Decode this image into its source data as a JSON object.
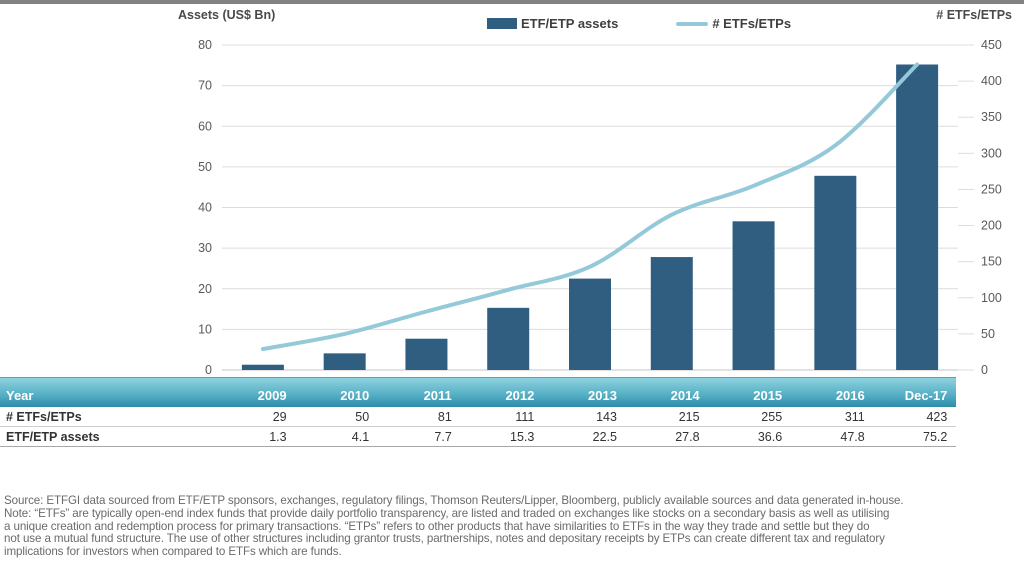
{
  "legend": [
    {
      "label": "ETF/ETP assets",
      "type": "bar"
    },
    {
      "label": "# ETFs/ETPs",
      "type": "line"
    }
  ],
  "chart_data": {
    "type": "combo",
    "categories": [
      "2009",
      "2010",
      "2011",
      "2012",
      "2013",
      "2014",
      "2015",
      "2016",
      "Dec-17"
    ],
    "series": [
      {
        "name": "ETF/ETP assets",
        "type": "bar",
        "axis": "left",
        "values": [
          1.3,
          4.1,
          7.7,
          15.3,
          22.5,
          27.8,
          36.6,
          47.8,
          75.2
        ]
      },
      {
        "name": "# ETFs/ETPs",
        "type": "line",
        "axis": "right",
        "values": [
          29,
          50,
          81,
          111,
          143,
          215,
          255,
          311,
          423
        ]
      }
    ],
    "left_axis": {
      "title": "Assets (US$ Bn)",
      "min": 0,
      "max": 80,
      "step": 10
    },
    "right_axis": {
      "title": "# ETFs/ETPs",
      "min": 0,
      "max": 450,
      "step": 50
    },
    "grid": true,
    "legend_position": "top-center"
  },
  "table": {
    "header": {
      "label": "Year",
      "values": [
        "2009",
        "2010",
        "2011",
        "2012",
        "2013",
        "2014",
        "2015",
        "2016",
        "Dec-17"
      ]
    },
    "rows": [
      {
        "label": "# ETFs/ETPs",
        "values": [
          "29",
          "50",
          "81",
          "111",
          "143",
          "215",
          "255",
          "311",
          "423"
        ]
      },
      {
        "label": "ETF/ETP assets",
        "values": [
          "1.3",
          "4.1",
          "7.7",
          "15.3",
          "22.5",
          "27.8",
          "36.6",
          "47.8",
          "75.2"
        ]
      }
    ]
  },
  "footnote": {
    "lines": [
      "Source: ETFGI data sourced from ETF/ETP sponsors, exchanges, regulatory filings, Thomson Reuters/Lipper, Bloomberg, publicly available sources and data generated in-house.",
      "Note: “ETFs” are typically open-end index funds that provide daily portfolio transparency, are listed and traded on exchanges like stocks on a secondary basis as well as utilising",
      "a unique creation and redemption process for primary transactions. “ETPs” refers to other products that have similarities to ETFs in the way they trade and settle but they do",
      "not use a mutual fund structure. The use of other structures including grantor trusts, partnerships, notes and depositary receipts by ETPs can create different tax and regulatory",
      "implications for investors when compared to ETFs which are funds."
    ]
  },
  "colors": {
    "bar": "#305e80",
    "line": "#93c9d9",
    "grid": "#dcdcdc",
    "baseline": "#c4c4c4",
    "axis_text": "#5a5a5a",
    "top_strip": "#828282"
  }
}
